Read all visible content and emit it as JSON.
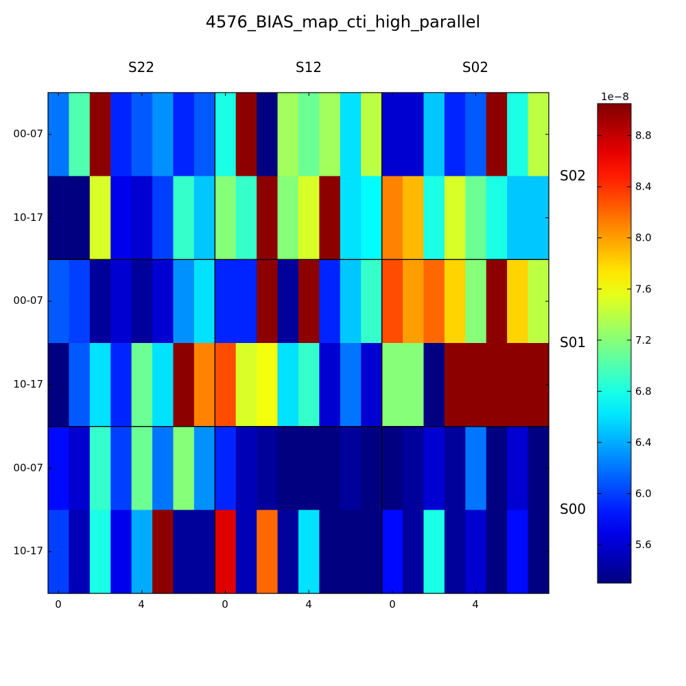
{
  "chart_data": {
    "type": "heatmap",
    "title": "4576_BIAS_map_cti_high_parallel",
    "column_groups": [
      "S22",
      "S12",
      "S02"
    ],
    "row_groups": [
      "S02",
      "S01",
      "S00"
    ],
    "row_labels": [
      "00-07",
      "10-17",
      "00-07",
      "10-17",
      "00-07",
      "10-17"
    ],
    "x_tick_labels": [
      "0",
      "4",
      "0",
      "4",
      "0",
      "4"
    ],
    "colorbar": {
      "colormap": "jet",
      "vmin": 5.3e-08,
      "vmax": 9.05e-08,
      "offset_label": "1e−8",
      "tick_labels": [
        "5.6",
        "6.0",
        "6.4",
        "6.8",
        "7.2",
        "7.6",
        "8.0",
        "8.4",
        "8.8"
      ],
      "ticks": [
        5.6,
        6.0,
        6.4,
        6.8,
        7.2,
        7.6,
        8.0,
        8.4,
        8.8
      ]
    },
    "units": "1e-8",
    "values": [
      [
        6.2,
        7.0,
        9.0,
        5.9,
        6.1,
        6.3,
        5.9,
        6.1,
        6.8,
        9.0,
        5.3,
        7.3,
        7.1,
        7.3,
        6.6,
        7.4,
        5.6,
        5.6,
        6.5,
        5.9,
        6.1,
        9.0,
        6.8,
        7.4
      ],
      [
        5.3,
        5.3,
        7.5,
        5.7,
        5.6,
        6.0,
        6.9,
        6.5,
        7.2,
        6.9,
        9.0,
        7.2,
        7.5,
        9.0,
        6.6,
        6.7,
        8.1,
        7.9,
        6.8,
        7.5,
        7.1,
        6.8,
        6.5,
        6.5
      ],
      [
        6.1,
        6.0,
        5.4,
        5.6,
        5.4,
        5.6,
        6.3,
        6.6,
        5.9,
        5.9,
        9.0,
        5.4,
        9.0,
        5.9,
        6.5,
        6.9,
        8.3,
        8.0,
        8.2,
        7.8,
        7.2,
        9.0,
        7.8,
        7.4
      ],
      [
        5.3,
        6.1,
        6.6,
        5.9,
        7.1,
        6.6,
        9.0,
        8.1,
        8.3,
        7.5,
        7.6,
        6.6,
        6.9,
        5.6,
        6.2,
        5.6,
        7.2,
        7.2,
        5.3,
        9.0,
        9.0,
        9.0,
        9.0,
        9.0
      ],
      [
        5.8,
        5.6,
        6.9,
        6.0,
        7.1,
        6.2,
        7.2,
        6.3,
        5.9,
        5.5,
        5.4,
        5.3,
        5.3,
        5.3,
        5.4,
        5.3,
        5.3,
        5.4,
        5.6,
        5.4,
        6.2,
        5.3,
        5.6,
        5.3
      ],
      [
        6.0,
        5.5,
        6.8,
        5.7,
        6.4,
        9.0,
        5.4,
        5.4,
        8.7,
        5.5,
        8.2,
        5.4,
        6.6,
        5.3,
        5.3,
        5.3,
        5.8,
        5.4,
        6.8,
        5.4,
        5.6,
        5.3,
        5.8,
        5.3
      ]
    ]
  }
}
